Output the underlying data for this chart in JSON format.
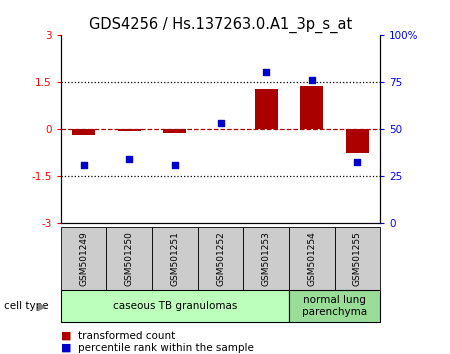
{
  "title": "GDS4256 / Hs.137263.0.A1_3p_s_at",
  "samples": [
    "GSM501249",
    "GSM501250",
    "GSM501251",
    "GSM501252",
    "GSM501253",
    "GSM501254",
    "GSM501255"
  ],
  "red_bars": [
    -0.2,
    -0.05,
    -0.12,
    0.0,
    1.3,
    1.38,
    -0.75
  ],
  "blue_dots_left": [
    -1.15,
    -0.95,
    -1.15,
    0.2,
    1.82,
    1.58,
    -1.05
  ],
  "left_ylim": [
    -3,
    3
  ],
  "right_ylim": [
    0,
    100
  ],
  "left_yticks": [
    -3,
    -1.5,
    0,
    1.5,
    3
  ],
  "right_yticks": [
    0,
    25,
    50,
    75,
    100
  ],
  "right_yticklabels": [
    "0",
    "25",
    "50",
    "75",
    "100%"
  ],
  "left_yticklabels": [
    "-3",
    "-1.5",
    "0",
    "1.5",
    "3"
  ],
  "dotted_line_y": [
    1.5,
    -1.5
  ],
  "dashed_line_y": 0,
  "groups": [
    {
      "label": "caseous TB granulomas",
      "indices": [
        0,
        1,
        2,
        3,
        4
      ],
      "color": "#bbffbb"
    },
    {
      "label": "normal lung\nparenchyma",
      "indices": [
        5,
        6
      ],
      "color": "#99dd99"
    }
  ],
  "bar_color": "#aa0000",
  "dot_color": "#0000cc",
  "bar_width": 0.5,
  "cell_type_label": "cell type",
  "legend_red": "transformed count",
  "legend_blue": "percentile rank within the sample",
  "background_plot": "#ffffff",
  "sample_box_color": "#cccccc",
  "title_fontsize": 10.5,
  "tick_fontsize": 7.5,
  "sample_fontsize": 6.5,
  "group_fontsize": 7.5,
  "legend_fontsize": 7.5
}
